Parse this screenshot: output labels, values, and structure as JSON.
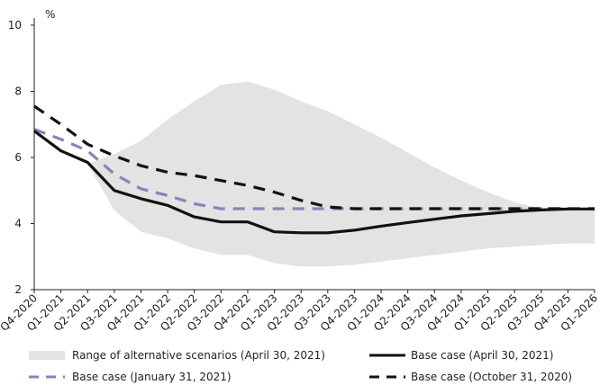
{
  "chart_data": {
    "type": "line",
    "unit_label": "%",
    "ylim": [
      2,
      10
    ],
    "yticks": [
      "2",
      "4",
      "6",
      "8",
      "10"
    ],
    "categories": [
      "Q4-2020",
      "Q1-2021",
      "Q2-2021",
      "Q3-2021",
      "Q4-2021",
      "Q1-2022",
      "Q2-2022",
      "Q3-2022",
      "Q4-2022",
      "Q1-2023",
      "Q2-2023",
      "Q3-2023",
      "Q4-2023",
      "Q1-2024",
      "Q2-2024",
      "Q3-2024",
      "Q4-2024",
      "Q1-2025",
      "Q2-2025",
      "Q3-2025",
      "Q4-2025",
      "Q1-2026"
    ],
    "band": {
      "name": "Range of alternative scenarios (April 30, 2021)",
      "color": "#e3e3e3",
      "low": [
        6.8,
        6.3,
        5.8,
        4.4,
        3.75,
        3.55,
        3.25,
        3.05,
        3.05,
        2.8,
        2.7,
        2.7,
        2.75,
        2.85,
        2.95,
        3.05,
        3.15,
        3.25,
        3.3,
        3.35,
        3.4,
        3.4
      ],
      "high": [
        6.8,
        6.3,
        5.8,
        6.1,
        6.5,
        7.15,
        7.7,
        8.2,
        8.3,
        8.05,
        7.7,
        7.4,
        7.0,
        6.6,
        6.15,
        5.7,
        5.3,
        4.95,
        4.65,
        4.45,
        4.4,
        4.4
      ]
    },
    "series": [
      {
        "name": "Base case (April 30, 2021)",
        "color": "#111111",
        "style": "solid",
        "values": [
          6.8,
          6.2,
          5.85,
          5.0,
          4.75,
          4.55,
          4.2,
          4.05,
          4.05,
          3.75,
          3.72,
          3.72,
          3.8,
          3.92,
          4.03,
          4.13,
          4.23,
          4.3,
          4.37,
          4.41,
          4.44,
          4.44
        ]
      },
      {
        "name": "Base case (January 31, 2021)",
        "color": "#8088bb",
        "style": "dashed",
        "values": [
          6.85,
          6.55,
          6.2,
          5.5,
          5.05,
          4.85,
          4.6,
          4.45,
          4.45,
          4.45,
          4.45,
          4.45,
          4.45,
          4.45,
          4.45,
          4.45,
          4.45,
          4.45,
          4.45,
          4.45,
          4.45,
          null
        ]
      },
      {
        "name": "Base case (October 31, 2020)",
        "color": "#111111",
        "style": "dashed",
        "values": [
          7.55,
          7.0,
          6.4,
          6.05,
          5.75,
          5.55,
          5.45,
          5.3,
          5.15,
          4.95,
          4.7,
          4.5,
          4.45,
          4.45,
          4.45,
          4.45,
          4.45,
          4.45,
          4.45,
          4.45,
          4.45,
          4.45
        ]
      }
    ],
    "legend_position": "bottom",
    "grid": false
  }
}
